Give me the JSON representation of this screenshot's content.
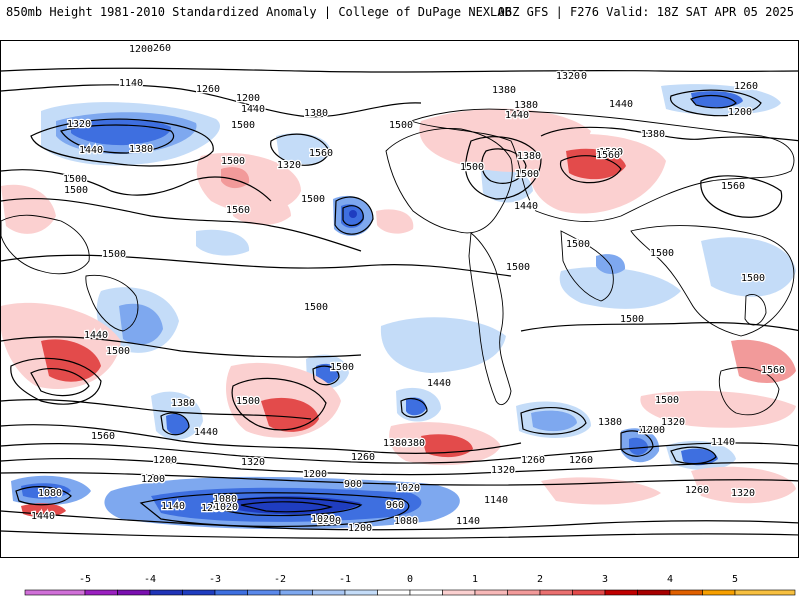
{
  "header": {
    "title_left": "850mb Height 1981-2010 Standardized Anomaly | College of DuPage NEXLAB",
    "title_right": "06Z GFS | F276 Valid: 18Z SAT APR 05 2025"
  },
  "colors": {
    "anom_pos": [
      "#fbd0d0",
      "#f29a9a",
      "#e34b4b",
      "#c00000",
      "#f7a000"
    ],
    "anom_neg": [
      "#c4dcf8",
      "#7ea8ef",
      "#3e6fe0",
      "#1f3dc0",
      "#8a18b8"
    ],
    "contour": "#000000",
    "land": "#000000"
  },
  "contour_labels": [
    "1260",
    "1200",
    "1140",
    "1260",
    "1200",
    "1320",
    "1380",
    "1440",
    "1500",
    "1500",
    "1500",
    "1500",
    "1440",
    "1500",
    "1380",
    "1560",
    "1320",
    "1500",
    "1560",
    "1500",
    "1380",
    "1380",
    "1440",
    "1380",
    "1320",
    "1500",
    "1500",
    "1440",
    "1500",
    "1560",
    "1320",
    "1440",
    "1380",
    "1560",
    "1500",
    "1260",
    "1200",
    "1500",
    "1500",
    "1500",
    "1500",
    "1500",
    "1560",
    "1500",
    "1440",
    "1560",
    "1500",
    "1380",
    "1440",
    "1500",
    "1500",
    "1440",
    "1320",
    "1200",
    "1380",
    "1380",
    "1560",
    "1260",
    "1320",
    "1200",
    "1140",
    "1260",
    "1080",
    "1200",
    "1260",
    "1200",
    "1080",
    "1140",
    "1140",
    "1260",
    "1320",
    "1380",
    "1200",
    "1080",
    "1440",
    "1020",
    "900",
    "1020",
    "960",
    "1080",
    "1140",
    "1020",
    "1200",
    "1140",
    "1260",
    "1320",
    "1200"
  ],
  "colorbar": {
    "ticks": [
      "-5",
      "-4",
      "-3",
      "-2",
      "-1",
      "0",
      "1",
      "2",
      "3",
      "4",
      "5"
    ]
  }
}
